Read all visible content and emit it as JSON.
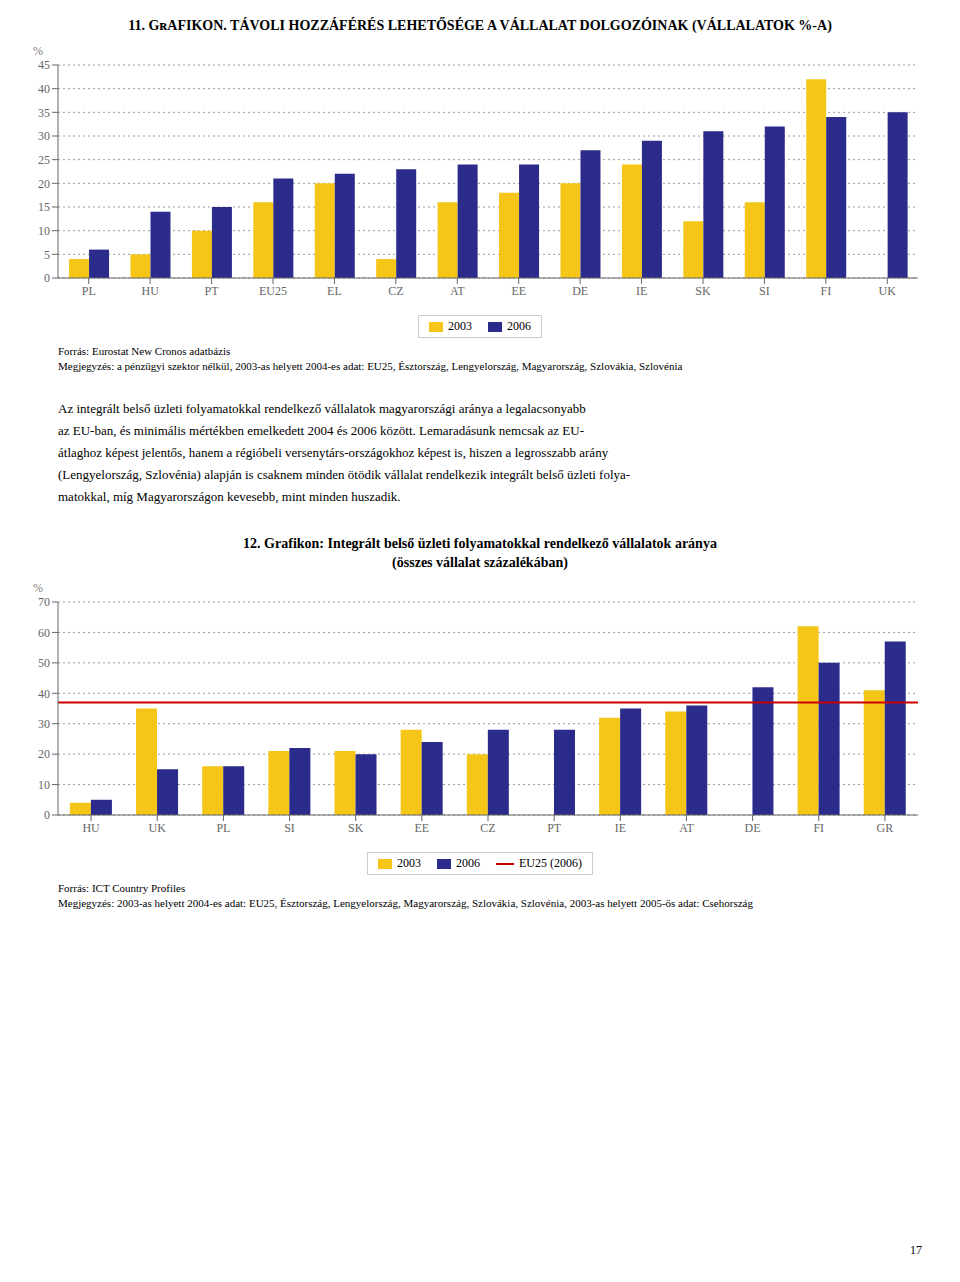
{
  "chart_data": [
    {
      "type": "bar",
      "title": "11. GʀAFIKON. TÁVOLI HOZZÁFÉRÉS LEHETŐSÉGE A VÁLLALAT DOLGOZÓINAK (VÁLLALATOK %-A)",
      "categories": [
        "PL",
        "HU",
        "PT",
        "EU25",
        "EL",
        "CZ",
        "AT",
        "EE",
        "DE",
        "IE",
        "SK",
        "SI",
        "FI",
        "UK"
      ],
      "series": [
        {
          "name": "2003",
          "color": "#F5C518",
          "values": [
            4,
            5,
            10,
            16,
            20,
            4,
            16,
            18,
            20,
            24,
            12,
            16,
            42,
            null
          ]
        },
        {
          "name": "2006",
          "color": "#2B2B8C",
          "values": [
            6,
            14,
            15,
            21,
            22,
            23,
            24,
            24,
            27,
            29,
            31,
            32,
            34,
            35
          ]
        }
      ],
      "ylabel": "%",
      "ylim": [
        0,
        45
      ],
      "yticks": [
        0,
        5,
        10,
        15,
        20,
        25,
        30,
        35,
        40,
        45
      ],
      "grid": true,
      "legend": "bottom",
      "annotations": [
        "Forrás: Eurostat New Cronos adatbázis",
        "Megjegyzés: a pénzügyi szektor nélkül, 2003-as helyett 2004-es adat: EU25, Észtország, Lengyelország, Magyarország, Szlovákia, Szlovénia",
        "Az integrált belső üzleti folyamatokkal rendelkező vállalatok magyarországi aránya a legalacsonyabb",
        "az EU-ban, és minimális mértékben emelkedett 2004 és 2006 között. Lemaradásunk nemcsak az EU-",
        "átlaghoz képest jelentős, hanem a régióbeli versenytárs-országokhoz képest is, hiszen a legrosszabb arány",
        "(Lengyelország, Szlovénia) alapján is csaknem minden ötödik vállalat rendelkezik integrált belső üzleti folya-",
        "matokkal, míg Magyarországon kevesebb, mint minden huszadik."
      ]
    },
    {
      "type": "bar",
      "title": "12. Grafikon: Integrált belső üzleti folyamatokkal rendelkező vállalatok aránya",
      "subtitle": "(összes vállalat százalékában)",
      "categories": [
        "HU",
        "UK",
        "PL",
        "SI",
        "SK",
        "EE",
        "CZ",
        "PT",
        "IE",
        "AT",
        "DE",
        "FI",
        "GR"
      ],
      "series": [
        {
          "name": "2003",
          "color": "#F5C518",
          "values": [
            4,
            35,
            16,
            21,
            21,
            28,
            20,
            null,
            32,
            34,
            null,
            62,
            41
          ]
        },
        {
          "name": "2006",
          "color": "#2B2B8C",
          "values": [
            5,
            15,
            16,
            22,
            20,
            24,
            28,
            28,
            35,
            36,
            42,
            50,
            57
          ]
        }
      ],
      "reference_line": {
        "name": "EU25 (2006)",
        "value": 37,
        "color": "#CC0000"
      },
      "ylabel": "%",
      "ylim": [
        0,
        70
      ],
      "yticks": [
        0,
        10,
        20,
        30,
        40,
        50,
        60,
        70
      ],
      "grid": true,
      "legend": "bottom",
      "annotations": [
        "Forrás: ICT Country Profiles",
        "Megjegyzés: 2003-as helyett 2004-es adat: EU25, Észtország, Lengyelország, Magyarország, Szlovákia, Szlovénia, 2003-as helyett 2005-ös adat: Csehország",
        "17"
      ]
    }
  ]
}
